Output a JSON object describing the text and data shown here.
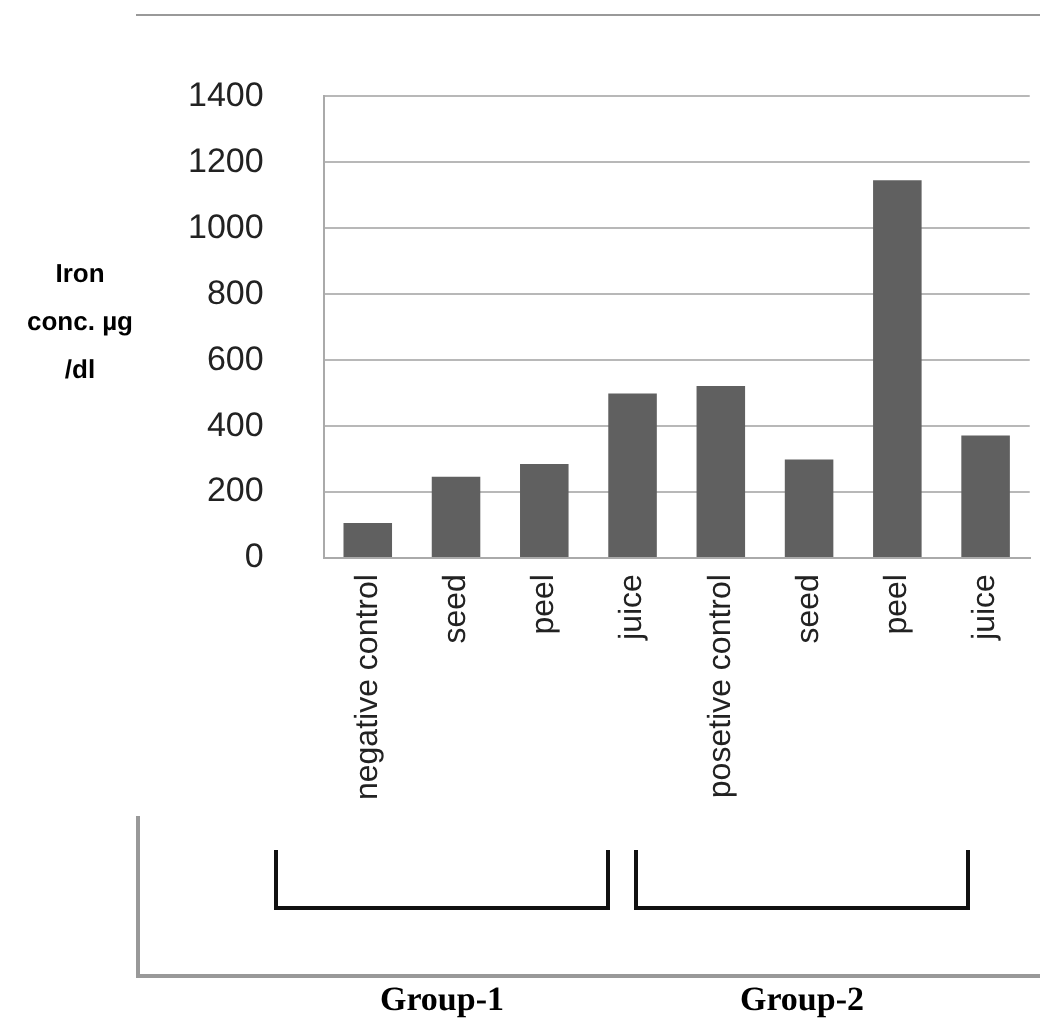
{
  "chart_data": {
    "type": "bar",
    "ylabel": "Iron conc. µg /dl",
    "categories": [
      "negative control",
      "seed",
      "peel",
      "juice",
      "posetive control",
      "seed",
      "peel",
      "juice"
    ],
    "values": [
      106,
      247,
      285,
      499,
      522,
      299,
      1146,
      372
    ],
    "color": "#606060",
    "ylim": [
      0,
      1400
    ],
    "yticks": [
      0,
      200,
      400,
      600,
      800,
      1000,
      1200,
      1400
    ],
    "grid": "y",
    "annotations": [
      "Group-1",
      "Group-2"
    ]
  }
}
